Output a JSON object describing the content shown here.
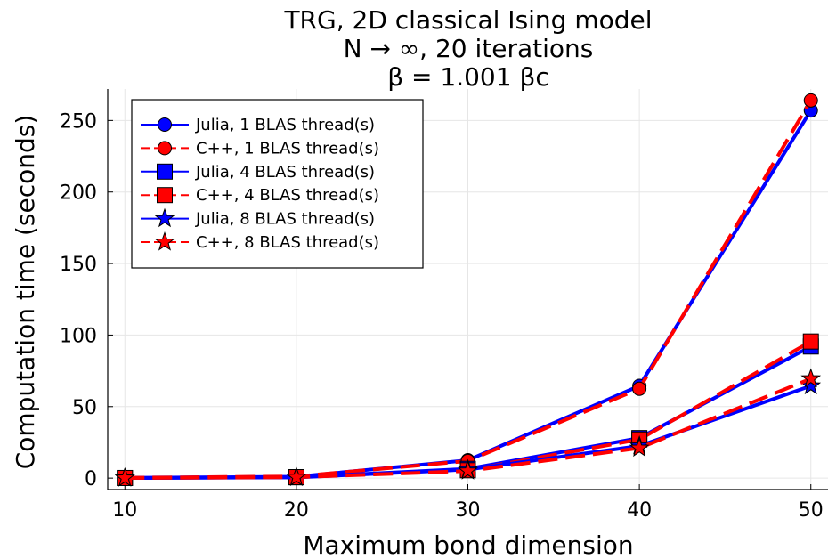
{
  "chart_data": {
    "type": "line",
    "title_lines": [
      "TRG, 2D classical Ising model",
      "N → ∞, 20 iterations",
      "β = 1.001 βc"
    ],
    "xlabel": "Maximum bond dimension",
    "ylabel": "Computation time (seconds)",
    "x": [
      10,
      20,
      30,
      40,
      50
    ],
    "xlim": [
      9,
      51
    ],
    "ylim": [
      -8,
      272
    ],
    "xticks": [
      10,
      20,
      30,
      40,
      50
    ],
    "yticks": [
      0,
      50,
      100,
      150,
      200,
      250
    ],
    "grid": true,
    "legend_position": "top-left",
    "colors": {
      "julia": "#0000ff",
      "cpp": "#ff0000"
    },
    "series": [
      {
        "name": "Julia, 1 BLAS thread(s)",
        "color": "#0000ff",
        "dashed": false,
        "marker": "circle",
        "values": [
          0.2,
          1.0,
          12.5,
          64.5,
          257
        ]
      },
      {
        "name": "C++, 1 BLAS thread(s)",
        "color": "#ff0000",
        "dashed": true,
        "marker": "circle",
        "values": [
          0.3,
          1.2,
          12.0,
          62.5,
          264
        ]
      },
      {
        "name": "Julia, 4 BLAS thread(s)",
        "color": "#0000ff",
        "dashed": false,
        "marker": "square",
        "values": [
          0.1,
          0.6,
          6.5,
          28.0,
          92.0
        ]
      },
      {
        "name": "C++, 4 BLAS thread(s)",
        "color": "#ff0000",
        "dashed": true,
        "marker": "square",
        "values": [
          0.1,
          0.7,
          5.5,
          27.0,
          95.5
        ]
      },
      {
        "name": "Julia, 8 BLAS thread(s)",
        "color": "#0000ff",
        "dashed": false,
        "marker": "star",
        "values": [
          0.1,
          0.5,
          6.0,
          22.5,
          64.5
        ]
      },
      {
        "name": "C++, 8 BLAS thread(s)",
        "color": "#ff0000",
        "dashed": true,
        "marker": "star",
        "values": [
          0.1,
          0.6,
          5.0,
          21.0,
          69.5
        ]
      }
    ]
  }
}
